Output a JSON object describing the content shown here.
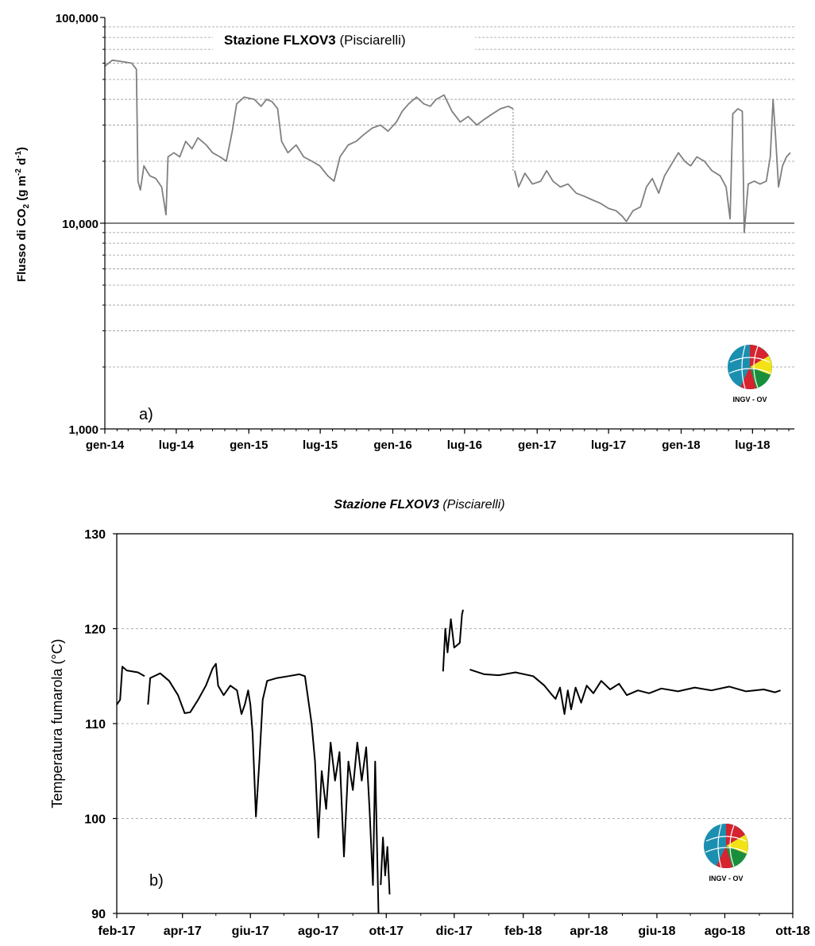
{
  "chart_data": [
    {
      "type": "line",
      "panel_label": "a)",
      "title_bold": "Stazione FLXOV3",
      "title_rest": "(Pisciarelli)",
      "ylabel_pre": "Flusso di CO",
      "ylabel_sub": "2",
      "ylabel_post": " (g m",
      "ylabel_sup1": "-2",
      "ylabel_mid": " d",
      "ylabel_sup2": "-1",
      "ylabel_end": ")",
      "yscale": "log",
      "ylim": [
        1000,
        100000
      ],
      "yticks": [
        {
          "v": 1000,
          "label": "1,000"
        },
        {
          "v": 10000,
          "label": "10,000"
        },
        {
          "v": 100000,
          "label": "100,000"
        }
      ],
      "xlim": [
        "2014-01-01",
        "2018-10-15"
      ],
      "xticks": [
        {
          "d": "2014-01-01",
          "label": "gen-14"
        },
        {
          "d": "2014-07-01",
          "label": "lug-14"
        },
        {
          "d": "2015-01-01",
          "label": "gen-15"
        },
        {
          "d": "2015-07-01",
          "label": "lug-15"
        },
        {
          "d": "2016-01-01",
          "label": "gen-16"
        },
        {
          "d": "2016-07-01",
          "label": "lug-16"
        },
        {
          "d": "2017-01-01",
          "label": "gen-17"
        },
        {
          "d": "2017-07-01",
          "label": "lug-17"
        },
        {
          "d": "2018-01-01",
          "label": "gen-18"
        },
        {
          "d": "2018-07-01",
          "label": "lug-18"
        }
      ],
      "grid": "horizontal dashed",
      "color": "#808080",
      "series": [
        {
          "segment": 1,
          "points": [
            [
              "2014-01-01",
              58000
            ],
            [
              "2014-01-20",
              62000
            ],
            [
              "2014-02-15",
              61000
            ],
            [
              "2014-03-10",
              60000
            ],
            [
              "2014-03-22",
              56000
            ],
            [
              "2014-03-26",
              16000
            ],
            [
              "2014-04-01",
              14500
            ],
            [
              "2014-04-10",
              19000
            ],
            [
              "2014-04-25",
              17000
            ],
            [
              "2014-05-10",
              16500
            ],
            [
              "2014-05-25",
              15000
            ],
            [
              "2014-06-05",
              11000
            ],
            [
              "2014-06-10",
              21000
            ],
            [
              "2014-06-25",
              22000
            ],
            [
              "2014-07-10",
              21000
            ],
            [
              "2014-07-25",
              25000
            ],
            [
              "2014-08-10",
              23000
            ],
            [
              "2014-08-25",
              26000
            ],
            [
              "2014-09-15",
              24000
            ],
            [
              "2014-10-01",
              22000
            ],
            [
              "2014-10-20",
              21000
            ],
            [
              "2014-11-05",
              20000
            ],
            [
              "2014-11-20",
              28000
            ],
            [
              "2014-12-01",
              38000
            ],
            [
              "2014-12-20",
              41000
            ],
            [
              "2015-01-15",
              40000
            ],
            [
              "2015-02-01",
              37000
            ],
            [
              "2015-02-15",
              40000
            ],
            [
              "2015-03-01",
              39000
            ],
            [
              "2015-03-15",
              36000
            ],
            [
              "2015-03-25",
              25000
            ],
            [
              "2015-04-10",
              22000
            ],
            [
              "2015-05-01",
              24000
            ],
            [
              "2015-05-20",
              21000
            ],
            [
              "2015-06-10",
              20000
            ],
            [
              "2015-06-30",
              19000
            ],
            [
              "2015-07-20",
              17000
            ],
            [
              "2015-08-05",
              16000
            ],
            [
              "2015-08-20",
              21000
            ],
            [
              "2015-09-10",
              24000
            ],
            [
              "2015-09-30",
              25000
            ],
            [
              "2015-10-20",
              27000
            ],
            [
              "2015-11-10",
              29000
            ],
            [
              "2015-12-01",
              30000
            ],
            [
              "2015-12-20",
              28000
            ],
            [
              "2016-01-10",
              31000
            ],
            [
              "2016-01-25",
              35000
            ],
            [
              "2016-02-10",
              38000
            ],
            [
              "2016-03-01",
              41000
            ],
            [
              "2016-03-20",
              38000
            ],
            [
              "2016-04-05",
              37000
            ],
            [
              "2016-04-20",
              40000
            ],
            [
              "2016-05-10",
              42000
            ],
            [
              "2016-05-30",
              35000
            ],
            [
              "2016-06-20",
              31000
            ],
            [
              "2016-07-10",
              33000
            ],
            [
              "2016-08-01",
              30000
            ],
            [
              "2016-08-20",
              32000
            ],
            [
              "2016-09-10",
              34000
            ],
            [
              "2016-09-30",
              36000
            ],
            [
              "2016-10-20",
              37000
            ],
            [
              "2016-11-01",
              36000
            ]
          ]
        },
        {
          "segment": 2,
          "points": [
            [
              "2016-11-05",
              18000
            ],
            [
              "2016-11-15",
              15000
            ],
            [
              "2016-12-01",
              17500
            ],
            [
              "2016-12-20",
              15500
            ],
            [
              "2017-01-10",
              16000
            ],
            [
              "2017-01-25",
              18000
            ],
            [
              "2017-02-10",
              16000
            ],
            [
              "2017-03-01",
              15000
            ],
            [
              "2017-03-20",
              15500
            ],
            [
              "2017-04-10",
              14000
            ],
            [
              "2017-05-01",
              13500
            ],
            [
              "2017-05-20",
              13000
            ],
            [
              "2017-06-10",
              12500
            ],
            [
              "2017-07-01",
              11800
            ],
            [
              "2017-07-20",
              11500
            ],
            [
              "2017-08-05",
              10800
            ],
            [
              "2017-08-15",
              10200
            ],
            [
              "2017-09-01",
              11500
            ],
            [
              "2017-09-20",
              12000
            ],
            [
              "2017-10-05",
              15000
            ],
            [
              "2017-10-20",
              16500
            ],
            [
              "2017-11-05",
              14000
            ],
            [
              "2017-11-20",
              17000
            ],
            [
              "2017-12-05",
              19000
            ],
            [
              "2017-12-25",
              22000
            ],
            [
              "2018-01-10",
              20000
            ],
            [
              "2018-01-25",
              19000
            ],
            [
              "2018-02-10",
              21000
            ],
            [
              "2018-03-01",
              20000
            ],
            [
              "2018-03-20",
              18000
            ],
            [
              "2018-04-10",
              17000
            ],
            [
              "2018-04-25",
              15000
            ],
            [
              "2018-05-05",
              10500
            ],
            [
              "2018-05-12",
              34000
            ],
            [
              "2018-05-25",
              36000
            ],
            [
              "2018-06-05",
              35000
            ],
            [
              "2018-06-10",
              9000
            ],
            [
              "2018-06-20",
              15500
            ],
            [
              "2018-07-05",
              16000
            ],
            [
              "2018-07-20",
              15500
            ],
            [
              "2018-08-05",
              16000
            ],
            [
              "2018-08-15",
              21000
            ],
            [
              "2018-08-22",
              40000
            ],
            [
              "2018-08-28",
              27000
            ],
            [
              "2018-09-05",
              15000
            ],
            [
              "2018-09-15",
              19000
            ],
            [
              "2018-09-25",
              21000
            ],
            [
              "2018-10-05",
              22000
            ]
          ]
        }
      ],
      "logo_text": "INGV - OV"
    },
    {
      "type": "line",
      "panel_label": "b)",
      "title_bold": "Stazione FLXOV3",
      "title_rest": "(Pisciarelli)",
      "ylabel": "Temperatura fumarola  (°C)",
      "ylim": [
        90,
        130
      ],
      "yticks": [
        90,
        100,
        110,
        120,
        130
      ],
      "xlim": [
        "2017-02-01",
        "2018-10-01"
      ],
      "xticks": [
        {
          "d": "2017-02-01",
          "label": "feb-17"
        },
        {
          "d": "2017-04-01",
          "label": "apr-17"
        },
        {
          "d": "2017-06-01",
          "label": "giu-17"
        },
        {
          "d": "2017-08-01",
          "label": "ago-17"
        },
        {
          "d": "2017-10-01",
          "label": "ott-17"
        },
        {
          "d": "2017-12-01",
          "label": "dic-17"
        },
        {
          "d": "2018-02-01",
          "label": "feb-18"
        },
        {
          "d": "2018-04-01",
          "label": "apr-18"
        },
        {
          "d": "2018-06-01",
          "label": "giu-18"
        },
        {
          "d": "2018-08-01",
          "label": "ago-18"
        },
        {
          "d": "2018-10-01",
          "label": "ott-18"
        }
      ],
      "grid": "horizontal dashed",
      "color": "#000000",
      "series": [
        {
          "segment": 1,
          "points": [
            [
              "2017-02-01",
              112
            ],
            [
              "2017-02-04",
              112.5
            ],
            [
              "2017-02-06",
              116
            ],
            [
              "2017-02-10",
              115.6
            ],
            [
              "2017-02-20",
              115.4
            ],
            [
              "2017-02-26",
              115
            ]
          ]
        },
        {
          "segment": 2,
          "points": [
            [
              "2017-03-01",
              112
            ],
            [
              "2017-03-03",
              114.8
            ],
            [
              "2017-03-12",
              115.3
            ],
            [
              "2017-03-20",
              114.5
            ],
            [
              "2017-03-28",
              113
            ],
            [
              "2017-04-03",
              111.1
            ],
            [
              "2017-04-08",
              111.2
            ],
            [
              "2017-04-15",
              112.5
            ],
            [
              "2017-04-22",
              114
            ],
            [
              "2017-04-28",
              115.8
            ],
            [
              "2017-05-01",
              116.3
            ],
            [
              "2017-05-03",
              114
            ],
            [
              "2017-05-08",
              113
            ],
            [
              "2017-05-14",
              114
            ],
            [
              "2017-05-20",
              113.5
            ],
            [
              "2017-05-24",
              111
            ],
            [
              "2017-05-27",
              112
            ],
            [
              "2017-05-30",
              113.5
            ],
            [
              "2017-06-01",
              112
            ],
            [
              "2017-06-03",
              109
            ],
            [
              "2017-06-06",
              100.2
            ],
            [
              "2017-06-09",
              106
            ],
            [
              "2017-06-12",
              112.5
            ],
            [
              "2017-06-16",
              114.5
            ],
            [
              "2017-06-25",
              114.8
            ],
            [
              "2017-07-05",
              115
            ],
            [
              "2017-07-15",
              115.2
            ],
            [
              "2017-07-20",
              115
            ],
            [
              "2017-07-26",
              110
            ],
            [
              "2017-07-29",
              106
            ],
            [
              "2017-08-01",
              98
            ],
            [
              "2017-08-04",
              105
            ],
            [
              "2017-08-08",
              101
            ],
            [
              "2017-08-12",
              108
            ],
            [
              "2017-08-16",
              104
            ],
            [
              "2017-08-20",
              107
            ],
            [
              "2017-08-24",
              96
            ],
            [
              "2017-08-28",
              106
            ],
            [
              "2017-09-01",
              103
            ],
            [
              "2017-09-05",
              108
            ],
            [
              "2017-09-09",
              104
            ],
            [
              "2017-09-13",
              107.5
            ],
            [
              "2017-09-16",
              101
            ],
            [
              "2017-09-19",
              93
            ],
            [
              "2017-09-21",
              106
            ],
            [
              "2017-09-24",
              90
            ]
          ]
        },
        {
          "segment": 3,
          "points": [
            [
              "2017-09-26",
              93
            ],
            [
              "2017-09-28",
              98
            ],
            [
              "2017-09-30",
              94
            ],
            [
              "2017-10-02",
              97
            ],
            [
              "2017-10-04",
              92
            ]
          ]
        },
        {
          "segment": 4,
          "points": [
            [
              "2017-11-21",
              115.5
            ],
            [
              "2017-11-23",
              120
            ],
            [
              "2017-11-25",
              117.5
            ],
            [
              "2017-11-28",
              121
            ],
            [
              "2017-12-01",
              118
            ],
            [
              "2017-12-06",
              118.5
            ],
            [
              "2017-12-08",
              121.5
            ],
            [
              "2017-12-09",
              122
            ]
          ]
        },
        {
          "segment": 5,
          "points": [
            [
              "2017-12-15",
              115.7
            ],
            [
              "2017-12-28",
              115.2
            ],
            [
              "2018-01-10",
              115.1
            ],
            [
              "2018-01-25",
              115.4
            ],
            [
              "2018-02-10",
              115
            ],
            [
              "2018-02-20",
              114
            ],
            [
              "2018-02-27",
              113
            ],
            [
              "2018-03-02",
              112.6
            ],
            [
              "2018-03-06",
              113.8
            ],
            [
              "2018-03-10",
              111
            ],
            [
              "2018-03-13",
              113.5
            ],
            [
              "2018-03-16",
              111.5
            ],
            [
              "2018-03-20",
              113.8
            ],
            [
              "2018-03-25",
              112.2
            ],
            [
              "2018-03-30",
              114
            ],
            [
              "2018-04-05",
              113.2
            ],
            [
              "2018-04-12",
              114.5
            ],
            [
              "2018-04-20",
              113.6
            ],
            [
              "2018-04-28",
              114.2
            ],
            [
              "2018-05-05",
              113
            ],
            [
              "2018-05-15",
              113.5
            ],
            [
              "2018-05-25",
              113.2
            ],
            [
              "2018-06-05",
              113.7
            ],
            [
              "2018-06-20",
              113.4
            ],
            [
              "2018-07-05",
              113.8
            ],
            [
              "2018-07-20",
              113.5
            ],
            [
              "2018-08-05",
              113.9
            ],
            [
              "2018-08-20",
              113.4
            ],
            [
              "2018-09-05",
              113.6
            ],
            [
              "2018-09-15",
              113.3
            ],
            [
              "2018-09-20",
              113.5
            ]
          ]
        }
      ],
      "logo_text": "INGV - OV"
    }
  ]
}
